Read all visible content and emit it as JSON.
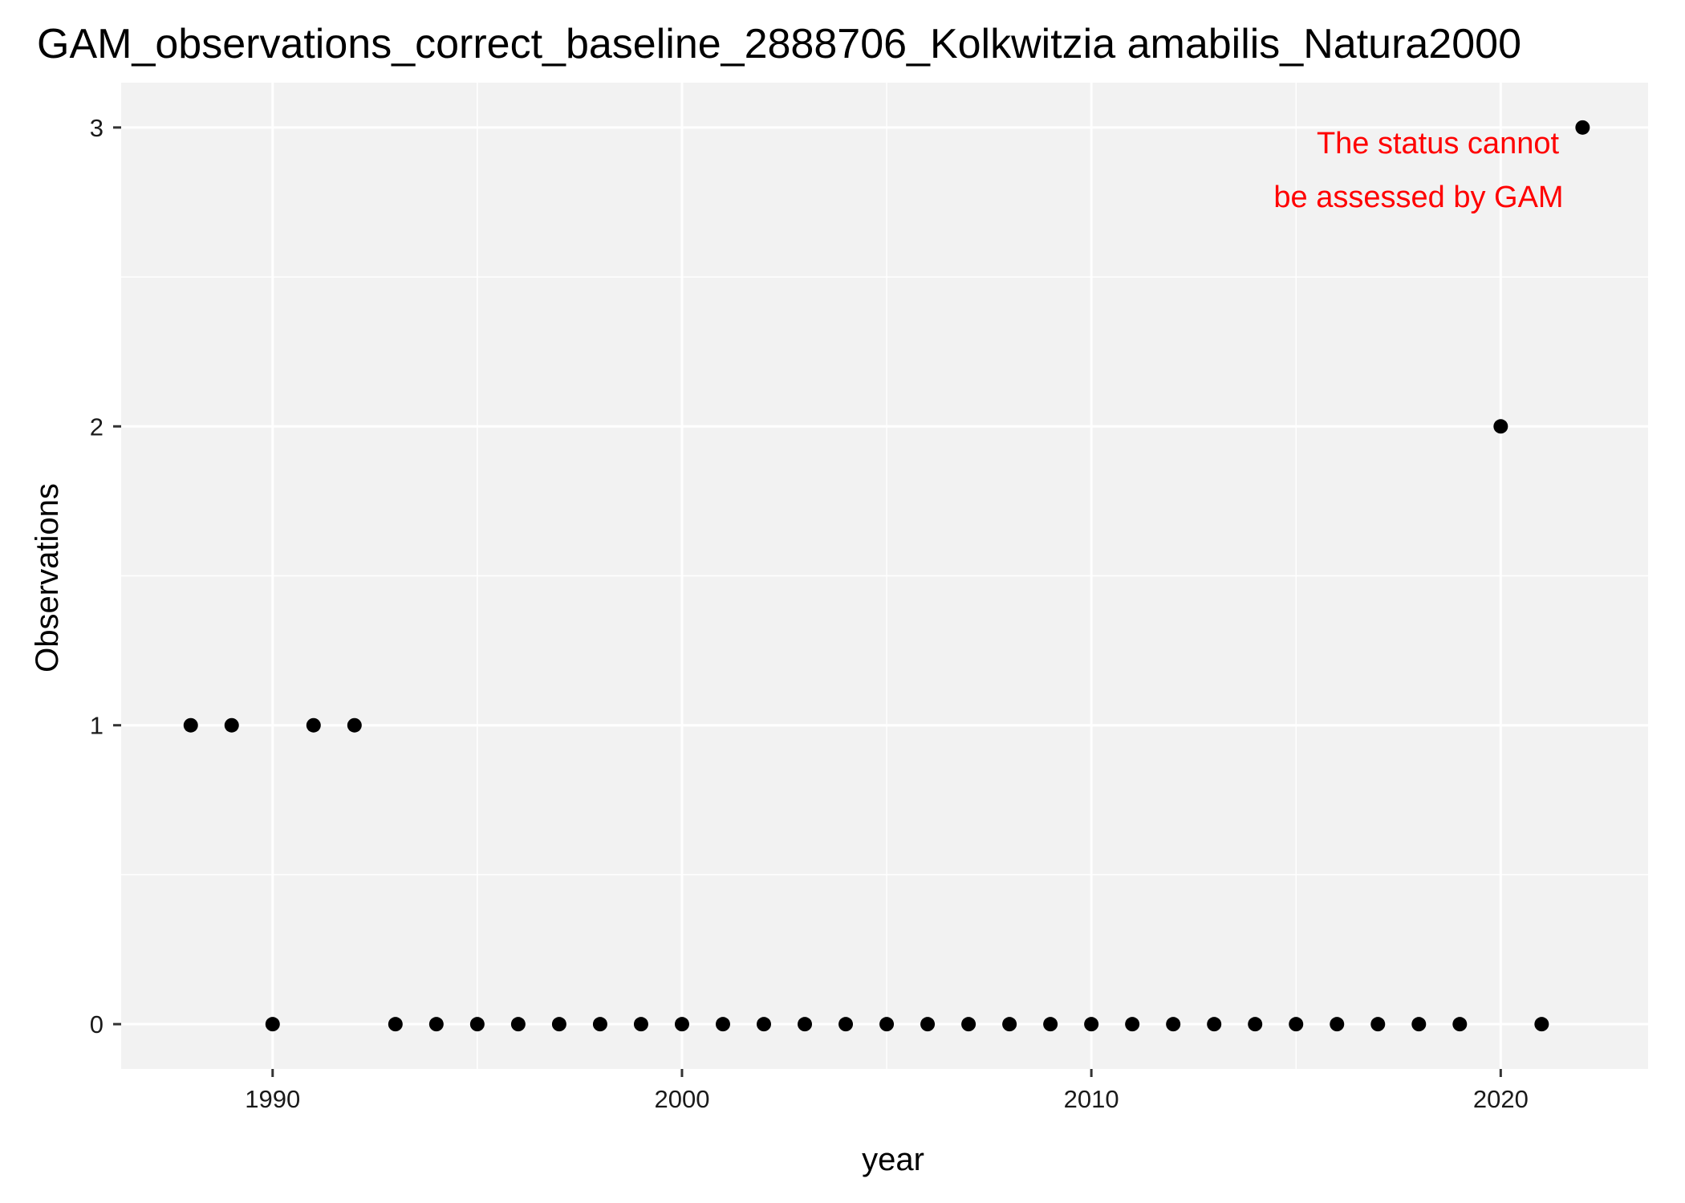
{
  "chart_data": {
    "type": "scatter",
    "title": "GAM_observations_correct_baseline_2888706_Kolkwitzia amabilis_Natura2000",
    "xlabel": "year",
    "ylabel": "Observations",
    "xlim": [
      1986.3,
      2023.6
    ],
    "ylim": [
      -0.15,
      3.15
    ],
    "x_ticks": [
      1990,
      2000,
      2010,
      2020
    ],
    "y_ticks": [
      0,
      1,
      2,
      3
    ],
    "grid": true,
    "panel_background": "#f2f2f2",
    "point_color": "#000000",
    "annotation": {
      "lines": [
        "The status cannot",
        "be assessed by GAM"
      ],
      "color": "#ff0000"
    },
    "points": [
      {
        "x": 1988,
        "y": 1
      },
      {
        "x": 1989,
        "y": 1
      },
      {
        "x": 1990,
        "y": 0
      },
      {
        "x": 1991,
        "y": 1
      },
      {
        "x": 1992,
        "y": 1
      },
      {
        "x": 1993,
        "y": 0
      },
      {
        "x": 1994,
        "y": 0
      },
      {
        "x": 1995,
        "y": 0
      },
      {
        "x": 1996,
        "y": 0
      },
      {
        "x": 1997,
        "y": 0
      },
      {
        "x": 1998,
        "y": 0
      },
      {
        "x": 1999,
        "y": 0
      },
      {
        "x": 2000,
        "y": 0
      },
      {
        "x": 2001,
        "y": 0
      },
      {
        "x": 2002,
        "y": 0
      },
      {
        "x": 2003,
        "y": 0
      },
      {
        "x": 2004,
        "y": 0
      },
      {
        "x": 2005,
        "y": 0
      },
      {
        "x": 2006,
        "y": 0
      },
      {
        "x": 2007,
        "y": 0
      },
      {
        "x": 2008,
        "y": 0
      },
      {
        "x": 2009,
        "y": 0
      },
      {
        "x": 2010,
        "y": 0
      },
      {
        "x": 2011,
        "y": 0
      },
      {
        "x": 2012,
        "y": 0
      },
      {
        "x": 2013,
        "y": 0
      },
      {
        "x": 2014,
        "y": 0
      },
      {
        "x": 2015,
        "y": 0
      },
      {
        "x": 2016,
        "y": 0
      },
      {
        "x": 2017,
        "y": 0
      },
      {
        "x": 2018,
        "y": 0
      },
      {
        "x": 2019,
        "y": 0
      },
      {
        "x": 2020,
        "y": 2
      },
      {
        "x": 2021,
        "y": 0
      },
      {
        "x": 2022,
        "y": 3
      }
    ]
  }
}
